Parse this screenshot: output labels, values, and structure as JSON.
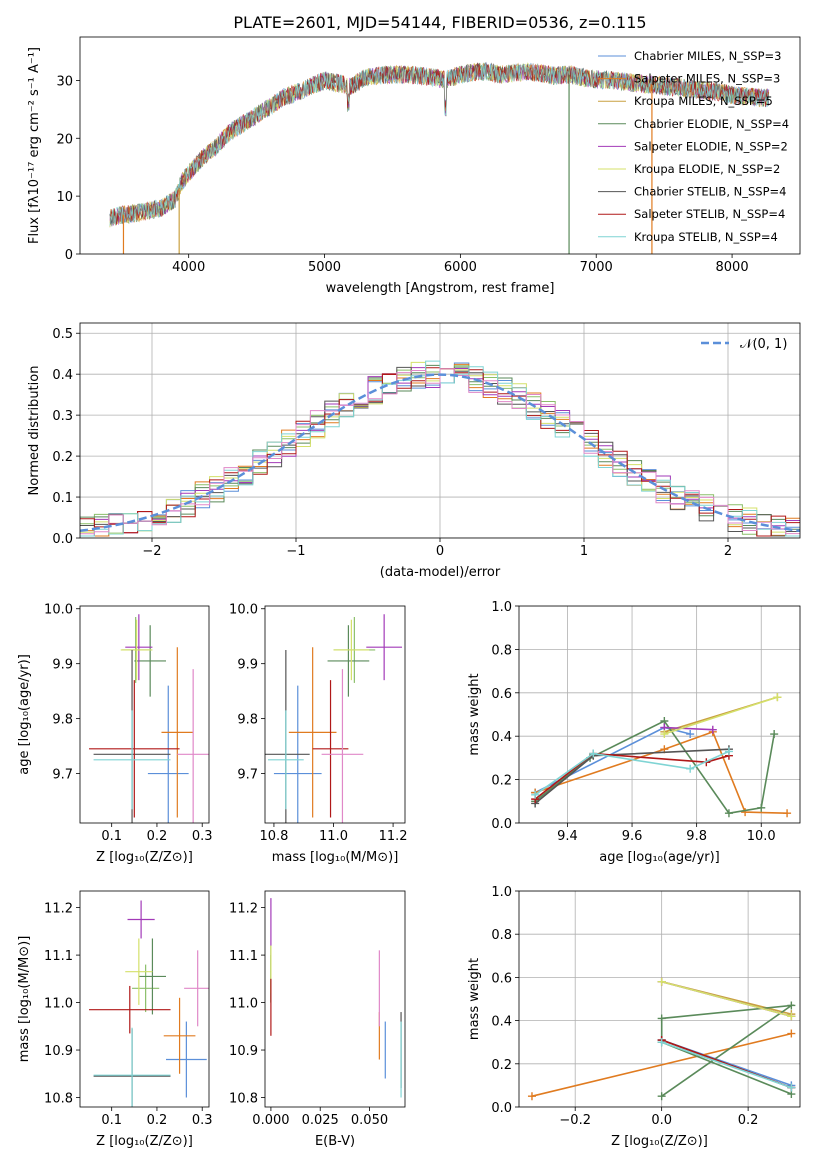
{
  "colors": {
    "axis": "#000000",
    "grid": "#b0b0b0",
    "models": [
      "#5b8fd9",
      "#e07b20",
      "#c9a040",
      "#5a8a5a",
      "#a23ab8",
      "#d4e06a",
      "#555555",
      "#b01818",
      "#7fd4d4"
    ],
    "errorbars": [
      "#5b8fd9",
      "#e07b20",
      "#8bbf6a",
      "#5a8a5a",
      "#a23ab8",
      "#d4e06a",
      "#555555",
      "#b01818",
      "#7fd4d4",
      "#e088c8"
    ]
  },
  "chart_data": [
    {
      "type": "line",
      "title": "PLATE=2601, MJD=54144, FIBERID=0536, z=0.115",
      "xlabel": "wavelength [Angstrom, rest frame]",
      "ylabel": "Flux [fλ10⁻¹⁷ erg cm⁻² s⁻¹ A⁻¹]",
      "xlim": [
        3200,
        8500
      ],
      "ylim": [
        0,
        37.5
      ],
      "xticks": [
        "4000",
        "5000",
        "6000",
        "7000",
        "8000"
      ],
      "yticks": [
        "0",
        "10",
        "20",
        "30"
      ],
      "legend_position": "upper right",
      "series": [
        {
          "name": "Chabrier MILES, N_SSP=3"
        },
        {
          "name": "Salpeter MILES, N_SSP=3"
        },
        {
          "name": "Kroupa MILES, N_SSP=5"
        },
        {
          "name": "Chabrier ELODIE, N_SSP=4"
        },
        {
          "name": "Salpeter ELODIE, N_SSP=2"
        },
        {
          "name": "Kroupa ELODIE, N_SSP=2"
        },
        {
          "name": "Chabrier STELIB, N_SSP=4"
        },
        {
          "name": "Salpeter STELIB, N_SSP=4"
        },
        {
          "name": "Kroupa STELIB, N_SSP=4"
        }
      ],
      "envelope": {
        "x": [
          3420,
          3480,
          3520,
          3600,
          3700,
          3800,
          3900,
          3950,
          4000,
          4100,
          4200,
          4300,
          4400,
          4500,
          4600,
          4700,
          4800,
          4900,
          5000,
          5100,
          5200,
          5300,
          5400,
          5500,
          5600,
          5700,
          5800,
          5900,
          6000,
          6100,
          6200,
          6300,
          6400,
          6500,
          6600,
          6700,
          6800,
          6900,
          7000,
          7100,
          7200,
          7300,
          7400,
          7500,
          7600,
          7700,
          7800,
          7900,
          8000,
          8100,
          8200,
          8270
        ],
        "y": [
          6.2,
          6.5,
          6.8,
          7.0,
          7.5,
          8.0,
          9.5,
          12.5,
          14.0,
          16.5,
          18.5,
          21.0,
          22.5,
          24.0,
          25.5,
          27.0,
          28.0,
          29.0,
          30.0,
          29.5,
          29.0,
          30.5,
          30.8,
          31.0,
          31.0,
          30.8,
          30.5,
          30.2,
          31.0,
          31.5,
          31.5,
          31.0,
          31.3,
          31.5,
          31.2,
          30.8,
          31.0,
          30.5,
          30.2,
          30.0,
          29.8,
          29.5,
          29.3,
          29.0,
          28.8,
          28.5,
          28.2,
          28.0,
          27.5,
          27.2,
          27.0,
          27.0
        ]
      },
      "drops": [
        3520,
        3930,
        6800,
        7410
      ]
    },
    {
      "type": "histogram",
      "xlabel": "(data-model)/error",
      "ylabel": "Normed distribution",
      "xlim": [
        -2.5,
        2.5
      ],
      "ylim": [
        0,
        0.525
      ],
      "xticks": [
        "−2",
        "−1",
        "0",
        "1",
        "2"
      ],
      "yticks": [
        "0.0",
        "0.1",
        "0.2",
        "0.3",
        "0.4",
        "0.5"
      ],
      "legend": "𝒩(0, 1)",
      "reference_curve": {
        "mu": 0,
        "sigma": 1
      }
    },
    {
      "type": "errorbar",
      "xlabel": "Z [log₁₀(Z/Z⊙)]",
      "ylabel": "age  [log₁₀(age/yr)]",
      "xlim": [
        0.03,
        0.315
      ],
      "ylim": [
        9.61,
        10.005
      ],
      "xticks": [
        "0.1",
        "0.2",
        "0.3"
      ],
      "yticks": [
        "9.7",
        "9.8",
        "9.9",
        "10.0"
      ],
      "points": [
        {
          "x": 0.225,
          "xe": 0.045,
          "y": 9.7,
          "ye": 0.16
        },
        {
          "x": 0.245,
          "xe": 0.035,
          "y": 9.775,
          "ye": 0.155
        },
        {
          "x": 0.153,
          "xe": 0.03,
          "y": 9.925,
          "ye": 0.06
        },
        {
          "x": 0.185,
          "xe": 0.035,
          "y": 9.905,
          "ye": 0.065
        },
        {
          "x": 0.16,
          "xe": 0.03,
          "y": 9.93,
          "ye": 0.06
        },
        {
          "x": 0.155,
          "xe": 0.035,
          "y": 9.925,
          "ye": 0.055
        },
        {
          "x": 0.145,
          "xe": 0.085,
          "y": 9.735,
          "ye": 0.19
        },
        {
          "x": 0.15,
          "xe": 0.1,
          "y": 9.745,
          "ye": 0.125
        },
        {
          "x": 0.145,
          "xe": 0.085,
          "y": 9.725,
          "ye": 0.09
        },
        {
          "x": 0.28,
          "xe": 0.035,
          "y": 9.735,
          "ye": 0.155
        }
      ]
    },
    {
      "type": "errorbar",
      "xlabel": "mass [log₁₀(M/M⊙)]",
      "ylabel": "",
      "xlim": [
        10.77,
        11.24
      ],
      "ylim": [
        9.61,
        10.005
      ],
      "xticks": [
        "10.8",
        "11.0",
        "11.2"
      ],
      "yticks": [
        "9.7",
        "9.8",
        "9.9",
        "10.0"
      ],
      "points": [
        {
          "x": 10.88,
          "xe": 0.08,
          "y": 9.7,
          "ye": 0.16
        },
        {
          "x": 10.93,
          "xe": 0.08,
          "y": 9.775,
          "ye": 0.155
        },
        {
          "x": 11.07,
          "xe": 0.07,
          "y": 9.925,
          "ye": 0.06
        },
        {
          "x": 11.05,
          "xe": 0.07,
          "y": 9.905,
          "ye": 0.065
        },
        {
          "x": 11.17,
          "xe": 0.06,
          "y": 9.93,
          "ye": 0.06
        },
        {
          "x": 11.06,
          "xe": 0.06,
          "y": 9.925,
          "ye": 0.055
        },
        {
          "x": 10.84,
          "xe": 0.08,
          "y": 9.735,
          "ye": 0.19
        },
        {
          "x": 10.99,
          "xe": 0.06,
          "y": 9.745,
          "ye": 0.125
        },
        {
          "x": 10.84,
          "xe": 0.06,
          "y": 9.725,
          "ye": 0.09
        },
        {
          "x": 11.03,
          "xe": 0.07,
          "y": 9.735,
          "ye": 0.155
        }
      ]
    },
    {
      "type": "line",
      "xlabel": "age  [log₁₀(age/yr)]",
      "ylabel": "mass weight",
      "xlim": [
        9.25,
        10.12
      ],
      "ylim": [
        0,
        1.0
      ],
      "xticks": [
        "9.4",
        "9.6",
        "9.8",
        "10.0"
      ],
      "yticks": [
        "0.0",
        "0.2",
        "0.4",
        "0.6",
        "0.8",
        "1.0"
      ],
      "series": [
        {
          "x": [
            9.3,
            9.7,
            9.78
          ],
          "y": [
            0.14,
            0.44,
            0.41
          ]
        },
        {
          "x": [
            9.3,
            9.7,
            9.85,
            9.95,
            10.08
          ],
          "y": [
            0.14,
            0.34,
            0.42,
            0.05,
            0.045
          ]
        },
        {
          "x": [
            9.7,
            10.05
          ],
          "y": [
            0.42,
            0.58
          ]
        },
        {
          "x": [
            9.3,
            9.47,
            9.7,
            9.9,
            10.0,
            10.04
          ],
          "y": [
            0.1,
            0.3,
            0.47,
            0.045,
            0.07,
            0.41
          ]
        },
        {
          "x": [
            9.7,
            9.85
          ],
          "y": [
            0.44,
            0.43
          ]
        },
        {
          "x": [
            9.7,
            10.05
          ],
          "y": [
            0.41,
            0.58
          ]
        },
        {
          "x": [
            9.3,
            9.48,
            9.9
          ],
          "y": [
            0.09,
            0.31,
            0.34
          ]
        },
        {
          "x": [
            9.3,
            9.48,
            9.83,
            9.9
          ],
          "y": [
            0.11,
            0.32,
            0.28,
            0.31
          ]
        },
        {
          "x": [
            9.3,
            9.48,
            9.78,
            9.9
          ],
          "y": [
            0.13,
            0.32,
            0.25,
            0.33
          ]
        }
      ]
    },
    {
      "type": "errorbar",
      "xlabel": "Z [log₁₀(Z/Z⊙)]",
      "ylabel": "mass [log₁₀(M/M⊙)]",
      "xlim": [
        0.03,
        0.315
      ],
      "ylim": [
        10.78,
        11.235
      ],
      "xticks": [
        "0.1",
        "0.2",
        "0.3"
      ],
      "yticks": [
        "10.8",
        "10.9",
        "11.0",
        "11.1",
        "11.2"
      ],
      "points": [
        {
          "x": 0.265,
          "xe": 0.045,
          "y": 10.88,
          "ye": 0.08
        },
        {
          "x": 0.25,
          "xe": 0.035,
          "y": 10.93,
          "ye": 0.08
        },
        {
          "x": 0.175,
          "xe": 0.03,
          "y": 11.03,
          "ye": 0.05
        },
        {
          "x": 0.19,
          "xe": 0.03,
          "y": 11.055,
          "ye": 0.08
        },
        {
          "x": 0.165,
          "xe": 0.03,
          "y": 11.175,
          "ye": 0.04
        },
        {
          "x": 0.16,
          "xe": 0.03,
          "y": 11.065,
          "ye": 0.07
        },
        {
          "x": 0.145,
          "xe": 0.085,
          "y": 10.845,
          "ye": 0.1
        },
        {
          "x": 0.14,
          "xe": 0.09,
          "y": 10.985,
          "ye": 0.05
        },
        {
          "x": 0.145,
          "xe": 0.085,
          "y": 10.847,
          "ye": 0.1
        },
        {
          "x": 0.29,
          "xe": 0.03,
          "y": 11.03,
          "ye": 0.08
        }
      ]
    },
    {
      "type": "errorbar",
      "xlabel": "E(B-V)",
      "ylabel": "",
      "xlim": [
        -0.003,
        0.068
      ],
      "ylim": [
        10.78,
        11.235
      ],
      "xticks": [
        "0.000",
        "0.025",
        "0.050"
      ],
      "yticks": [
        "10.8",
        "10.9",
        "11.0",
        "11.1",
        "11.2"
      ],
      "points": [
        {
          "x": 0.058,
          "y": 10.9,
          "ye": 0.06
        },
        {
          "x": 0.055,
          "y": 10.93,
          "ye": 0.05
        },
        {
          "x": 0.0,
          "y": 11.05,
          "ye": 0.05
        },
        {
          "x": 0.0,
          "y": 11.06,
          "ye": 0.06
        },
        {
          "x": 0.0,
          "y": 11.17,
          "ye": 0.05
        },
        {
          "x": 0.0,
          "y": 11.07,
          "ye": 0.05
        },
        {
          "x": 0.066,
          "y": 10.9,
          "ye": 0.08
        },
        {
          "x": 0.0,
          "y": 10.99,
          "ye": 0.06
        },
        {
          "x": 0.066,
          "y": 10.88,
          "ye": 0.08
        },
        {
          "x": 0.055,
          "y": 11.03,
          "ye": 0.08
        }
      ]
    },
    {
      "type": "line",
      "xlabel": "Z [log₁₀(Z/Z⊙)]",
      "ylabel": "mass weight",
      "xlim": [
        -0.33,
        0.32
      ],
      "ylim": [
        0,
        1.0
      ],
      "xticks": [
        "−0.2",
        "0.0",
        "0.2"
      ],
      "yticks": [
        "0.0",
        "0.2",
        "0.4",
        "0.6",
        "0.8",
        "1.0"
      ],
      "series": [
        {
          "x": [
            0.0,
            0.3
          ],
          "y": [
            0.31,
            0.1
          ]
        },
        {
          "x": [
            -0.3,
            0.3
          ],
          "y": [
            0.05,
            0.34
          ]
        },
        {
          "x": [
            0.0,
            0.3
          ],
          "y": [
            0.58,
            0.43
          ]
        },
        {
          "x": [
            0.0,
            0.3,
            0.0,
            0.0,
            0.3
          ],
          "y": [
            0.05,
            0.47,
            0.41,
            0.3,
            0.06
          ]
        },
        {
          "x": [
            0.0,
            0.3
          ],
          "y": [
            0.58,
            0.42
          ]
        },
        {
          "x": [
            0.0,
            0.3
          ],
          "y": [
            0.58,
            0.42
          ]
        },
        {
          "x": [
            0.0,
            0.3
          ],
          "y": [
            0.31,
            0.09
          ]
        },
        {
          "x": [
            0.0,
            0.3
          ],
          "y": [
            0.31,
            0.09
          ]
        },
        {
          "x": [
            0.0,
            0.3
          ],
          "y": [
            0.3,
            0.09
          ]
        }
      ]
    }
  ]
}
